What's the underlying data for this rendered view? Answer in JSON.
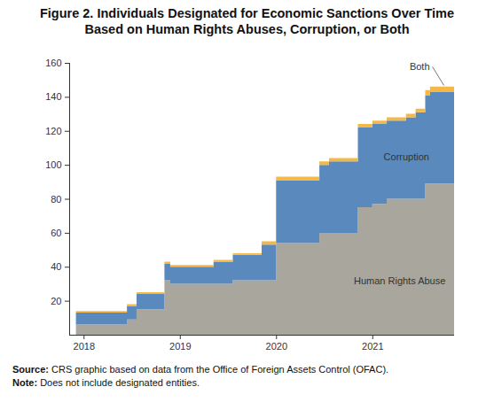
{
  "chart_data": {
    "type": "area",
    "title": "Figure 2. Individuals Designated for Economic Sanctions Over Time Based on Human Rights Abuses, Corruption, or Both",
    "x": [
      2017.85,
      2017.92,
      2018.45,
      2018.55,
      2018.84,
      2018.9,
      2019.35,
      2019.55,
      2019.85,
      2020.0,
      2020.45,
      2020.55,
      2020.85,
      2021.0,
      2021.15,
      2021.35,
      2021.45,
      2021.55,
      2021.6,
      2021.85
    ],
    "series": [
      {
        "name": "Human Rights Abuse",
        "color": "#a9a69d",
        "values": [
          0,
          6,
          9,
          15,
          32,
          30,
          30,
          32,
          32,
          54,
          60,
          60,
          75,
          77,
          80,
          80,
          80,
          89,
          89,
          89
        ]
      },
      {
        "name": "Corruption",
        "color": "#5a89bd",
        "values": [
          0,
          7,
          8,
          9,
          10,
          10,
          13,
          15,
          21,
          37,
          40,
          42,
          47,
          47,
          46,
          48,
          51,
          52,
          54,
          55
        ]
      },
      {
        "name": "Both",
        "color": "#f3b845",
        "values": [
          0,
          1,
          1,
          1,
          1,
          1,
          1,
          1,
          2,
          2,
          2,
          2,
          2,
          2,
          2,
          2,
          2,
          3,
          3,
          3
        ]
      }
    ],
    "stacked": true,
    "line_style": "step",
    "xlim": [
      2017.85,
      2021.85
    ],
    "xticks": [
      2018,
      2019,
      2020,
      2021
    ],
    "ylim": [
      0,
      160
    ],
    "yticks": [
      20,
      40,
      60,
      80,
      100,
      120,
      140,
      160
    ],
    "annotations": [
      {
        "text": "Human Rights Abuse",
        "x": 2021.28,
        "y": 32
      },
      {
        "text": "Corruption",
        "x": 2021.35,
        "y": 105
      },
      {
        "text": "Both",
        "x": 2021.62,
        "y": 158,
        "target_x": 2021.74,
        "target_y": 147
      }
    ],
    "source": "Source: CRS graphic based on data from the Office of Foreign Assets Control (OFAC).",
    "note": "Note: Does not include designated entities."
  }
}
